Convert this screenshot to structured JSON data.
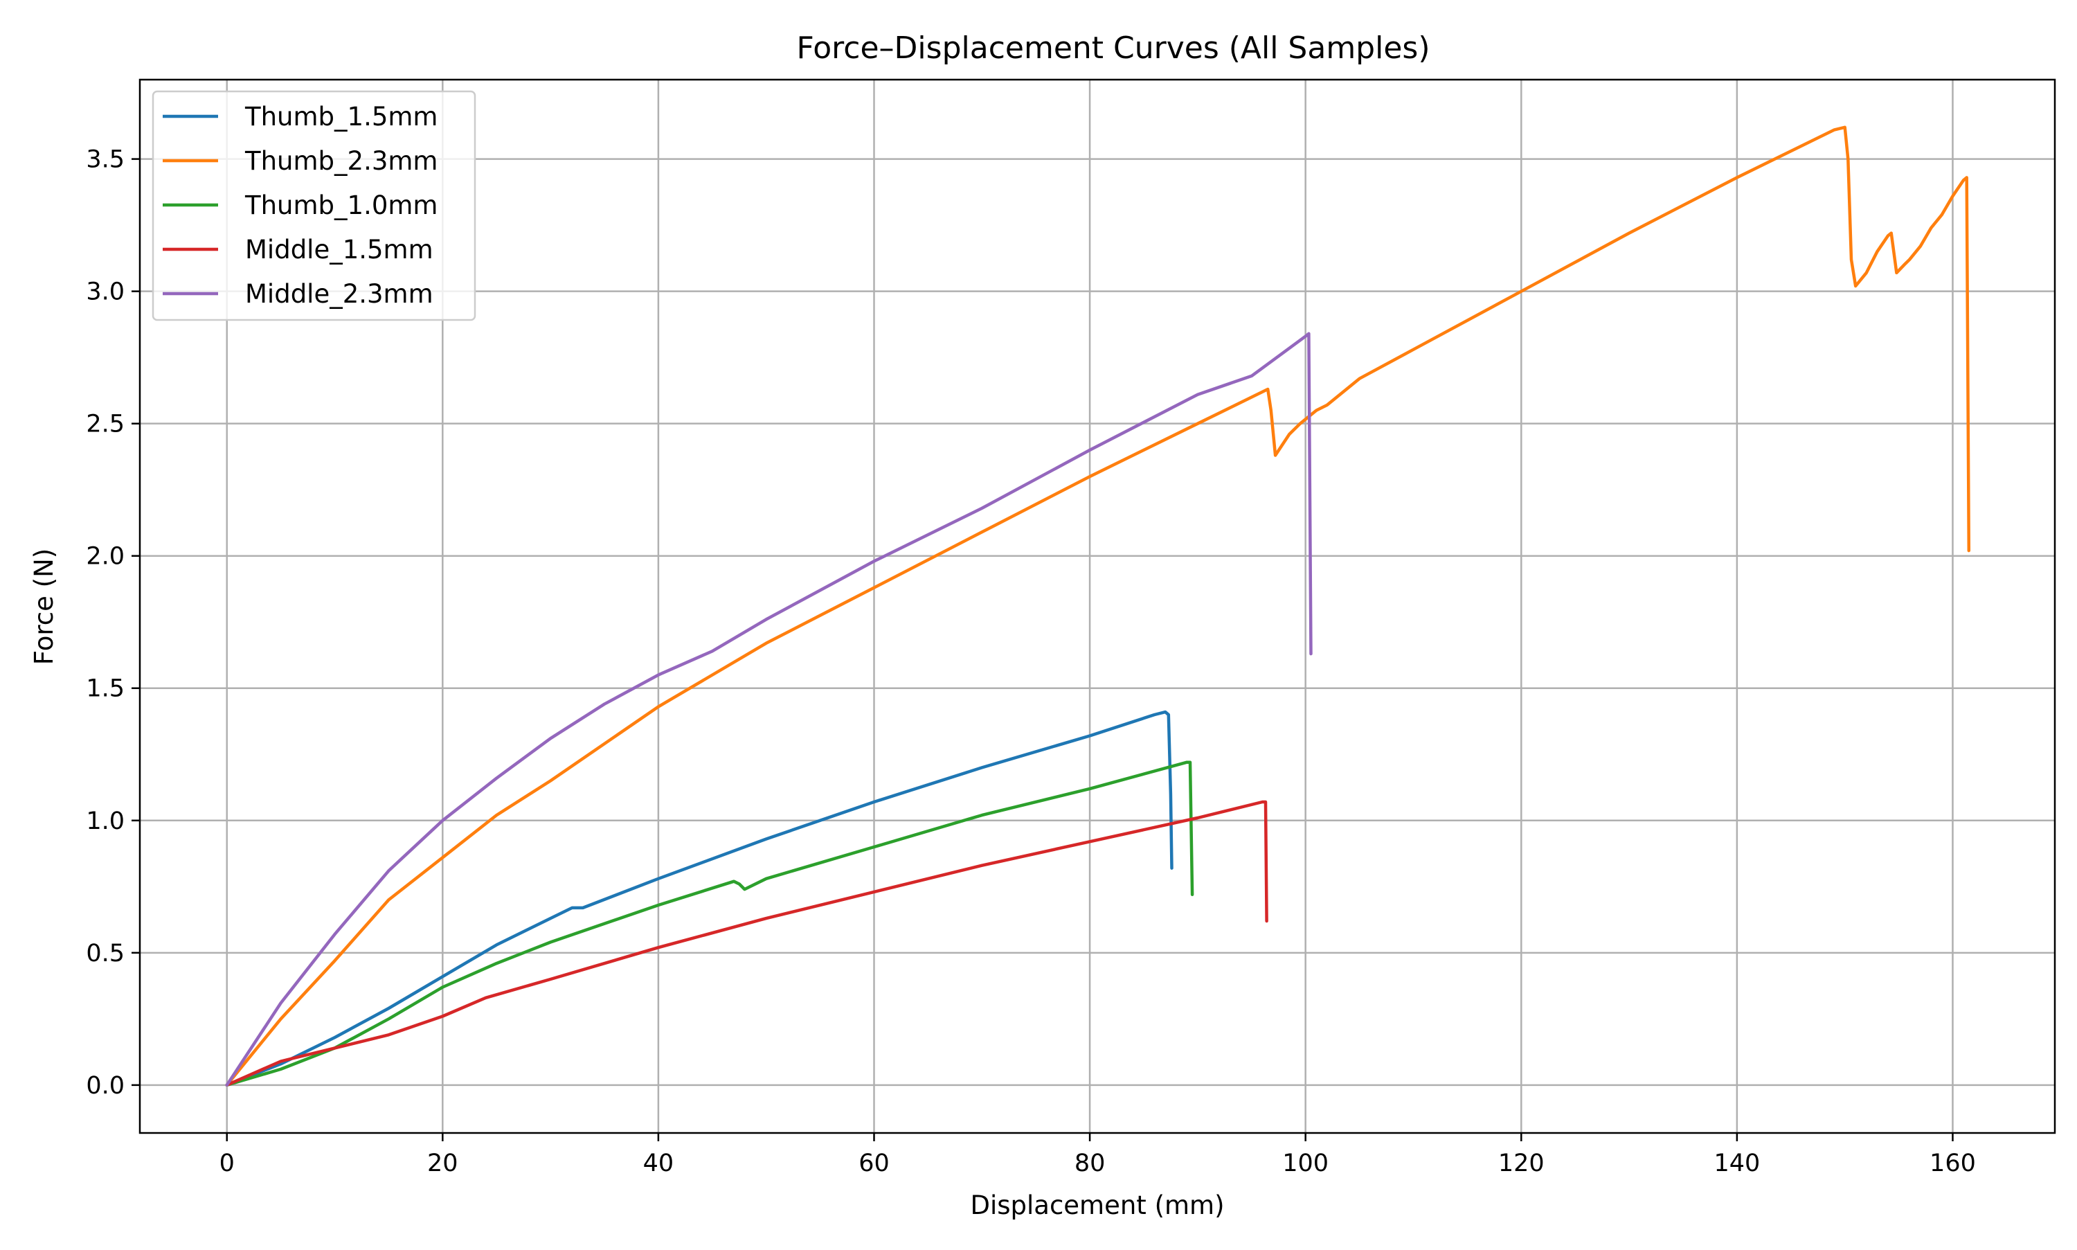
{
  "chart_data": {
    "type": "line",
    "title": "Force–Displacement Curves (All Samples)",
    "xlabel": "Displacement (mm)",
    "ylabel": "Force (N)",
    "xlim": [
      -8.07,
      169.47
    ],
    "ylim": [
      -0.181,
      3.8
    ],
    "xticks": [
      0,
      20,
      40,
      60,
      80,
      100,
      120,
      140,
      160
    ],
    "xtick_labels": [
      "0",
      "20",
      "40",
      "60",
      "80",
      "100",
      "120",
      "140",
      "160"
    ],
    "yticks": [
      0.0,
      0.5,
      1.0,
      1.5,
      2.0,
      2.5,
      3.0,
      3.5
    ],
    "ytick_labels": [
      "0.0",
      "0.5",
      "1.0",
      "1.5",
      "2.0",
      "2.5",
      "3.0",
      "3.5"
    ],
    "grid": true,
    "legend_position": "top-left",
    "series": [
      {
        "name": "Thumb_1.5mm",
        "color": "#1f77b4",
        "points": [
          [
            0,
            0
          ],
          [
            5,
            0.08
          ],
          [
            10,
            0.18
          ],
          [
            15,
            0.29
          ],
          [
            20,
            0.41
          ],
          [
            25,
            0.53
          ],
          [
            30,
            0.63
          ],
          [
            32,
            0.67
          ],
          [
            33,
            0.67
          ],
          [
            40,
            0.78
          ],
          [
            50,
            0.93
          ],
          [
            60,
            1.07
          ],
          [
            70,
            1.2
          ],
          [
            80,
            1.32
          ],
          [
            86,
            1.4
          ],
          [
            87,
            1.41
          ],
          [
            87.3,
            1.4
          ],
          [
            87.5,
            1.1
          ],
          [
            87.6,
            0.82
          ]
        ]
      },
      {
        "name": "Thumb_2.3mm",
        "color": "#ff7f0e",
        "points": [
          [
            0,
            0
          ],
          [
            5,
            0.25
          ],
          [
            10,
            0.47
          ],
          [
            15,
            0.7
          ],
          [
            20,
            0.86
          ],
          [
            25,
            1.02
          ],
          [
            30,
            1.15
          ],
          [
            40,
            1.43
          ],
          [
            50,
            1.67
          ],
          [
            60,
            1.88
          ],
          [
            70,
            2.09
          ],
          [
            80,
            2.3
          ],
          [
            90,
            2.5
          ],
          [
            96.5,
            2.63
          ],
          [
            96.8,
            2.55
          ],
          [
            97.2,
            2.38
          ],
          [
            98.5,
            2.46
          ],
          [
            99.5,
            2.5
          ],
          [
            101,
            2.55
          ],
          [
            102,
            2.57
          ],
          [
            105,
            2.67
          ],
          [
            110,
            2.78
          ],
          [
            120,
            3.0
          ],
          [
            130,
            3.22
          ],
          [
            140,
            3.43
          ],
          [
            149,
            3.61
          ],
          [
            150,
            3.62
          ],
          [
            150.3,
            3.5
          ],
          [
            150.6,
            3.12
          ],
          [
            151,
            3.02
          ],
          [
            152,
            3.07
          ],
          [
            153,
            3.15
          ],
          [
            154,
            3.21
          ],
          [
            154.3,
            3.22
          ],
          [
            154.8,
            3.07
          ],
          [
            155.5,
            3.1
          ],
          [
            156,
            3.12
          ],
          [
            157,
            3.17
          ],
          [
            158,
            3.24
          ],
          [
            159,
            3.29
          ],
          [
            160,
            3.36
          ],
          [
            161,
            3.42
          ],
          [
            161.3,
            3.43
          ],
          [
            161.5,
            2.02
          ]
        ]
      },
      {
        "name": "Thumb_1.0mm",
        "color": "#2ca02c",
        "points": [
          [
            0,
            0
          ],
          [
            5,
            0.06
          ],
          [
            10,
            0.14
          ],
          [
            15,
            0.25
          ],
          [
            20,
            0.37
          ],
          [
            25,
            0.46
          ],
          [
            30,
            0.54
          ],
          [
            40,
            0.68
          ],
          [
            47,
            0.77
          ],
          [
            47.5,
            0.76
          ],
          [
            48,
            0.74
          ],
          [
            50,
            0.78
          ],
          [
            60,
            0.9
          ],
          [
            70,
            1.02
          ],
          [
            80,
            1.12
          ],
          [
            89,
            1.22
          ],
          [
            89.3,
            1.22
          ],
          [
            89.5,
            0.72
          ]
        ]
      },
      {
        "name": "Middle_1.5mm",
        "color": "#d62728",
        "points": [
          [
            0,
            0
          ],
          [
            5,
            0.09
          ],
          [
            10,
            0.14
          ],
          [
            15,
            0.19
          ],
          [
            20,
            0.26
          ],
          [
            24,
            0.33
          ],
          [
            30,
            0.4
          ],
          [
            40,
            0.52
          ],
          [
            50,
            0.63
          ],
          [
            60,
            0.73
          ],
          [
            70,
            0.83
          ],
          [
            80,
            0.92
          ],
          [
            90,
            1.01
          ],
          [
            96,
            1.07
          ],
          [
            96.3,
            1.07
          ],
          [
            96.4,
            0.62
          ]
        ]
      },
      {
        "name": "Middle_2.3mm",
        "color": "#9467bd",
        "points": [
          [
            0,
            0
          ],
          [
            5,
            0.31
          ],
          [
            10,
            0.57
          ],
          [
            15,
            0.81
          ],
          [
            20,
            1.0
          ],
          [
            25,
            1.16
          ],
          [
            30,
            1.31
          ],
          [
            35,
            1.44
          ],
          [
            40,
            1.55
          ],
          [
            45,
            1.64
          ],
          [
            50,
            1.76
          ],
          [
            60,
            1.98
          ],
          [
            70,
            2.18
          ],
          [
            80,
            2.4
          ],
          [
            90,
            2.61
          ],
          [
            95,
            2.68
          ],
          [
            100,
            2.83
          ],
          [
            100.3,
            2.84
          ],
          [
            100.5,
            1.63
          ]
        ]
      }
    ]
  }
}
